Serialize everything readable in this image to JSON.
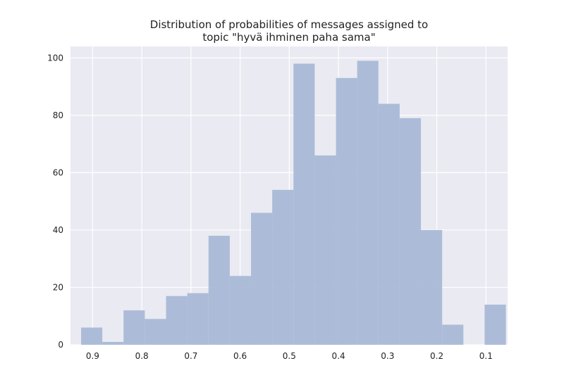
{
  "chart_data": {
    "type": "histogram",
    "title": [
      "Distribution of probabilities of messages assigned to",
      "topic \"hyvä ihminen paha sama\""
    ],
    "xlabel": "",
    "ylabel": "",
    "x_axis_reversed": true,
    "xlim": [
      0.056,
      0.945
    ],
    "ylim": [
      0,
      104
    ],
    "x_ticks": [
      0.9,
      0.8,
      0.7,
      0.6,
      0.5,
      0.4,
      0.3,
      0.2,
      0.1
    ],
    "x_tick_labels": [
      "0.9",
      "0.8",
      "0.7",
      "0.6",
      "0.5",
      "0.4",
      "0.3",
      "0.2",
      "0.1"
    ],
    "y_ticks": [
      0,
      20,
      40,
      60,
      80,
      100
    ],
    "y_tick_labels": [
      "0",
      "20",
      "40",
      "60",
      "80",
      "100"
    ],
    "bins": [
      {
        "x_start": 0.9235,
        "x_end": 0.8803,
        "count": 6
      },
      {
        "x_start": 0.8803,
        "x_end": 0.8371,
        "count": 1
      },
      {
        "x_start": 0.8371,
        "x_end": 0.7939,
        "count": 12
      },
      {
        "x_start": 0.7939,
        "x_end": 0.7507,
        "count": 9
      },
      {
        "x_start": 0.7507,
        "x_end": 0.7075,
        "count": 17
      },
      {
        "x_start": 0.7075,
        "x_end": 0.6643,
        "count": 18
      },
      {
        "x_start": 0.6643,
        "x_end": 0.6211,
        "count": 38
      },
      {
        "x_start": 0.6211,
        "x_end": 0.5779,
        "count": 24
      },
      {
        "x_start": 0.5779,
        "x_end": 0.5347,
        "count": 46
      },
      {
        "x_start": 0.5347,
        "x_end": 0.4915,
        "count": 54
      },
      {
        "x_start": 0.4915,
        "x_end": 0.4483,
        "count": 98
      },
      {
        "x_start": 0.4483,
        "x_end": 0.4051,
        "count": 66
      },
      {
        "x_start": 0.4051,
        "x_end": 0.3619,
        "count": 93
      },
      {
        "x_start": 0.3619,
        "x_end": 0.3187,
        "count": 99
      },
      {
        "x_start": 0.3187,
        "x_end": 0.2755,
        "count": 84
      },
      {
        "x_start": 0.2755,
        "x_end": 0.2323,
        "count": 79
      },
      {
        "x_start": 0.2323,
        "x_end": 0.1891,
        "count": 40
      },
      {
        "x_start": 0.1891,
        "x_end": 0.1459,
        "count": 7
      },
      {
        "x_start": 0.1459,
        "x_end": 0.1027,
        "count": 0
      },
      {
        "x_start": 0.1027,
        "x_end": 0.0595,
        "count": 14
      }
    ],
    "grid": true,
    "colors": {
      "bar": "#a9b9d6",
      "plot_background": "#eaeaf2",
      "grid": "#ffffff"
    }
  }
}
